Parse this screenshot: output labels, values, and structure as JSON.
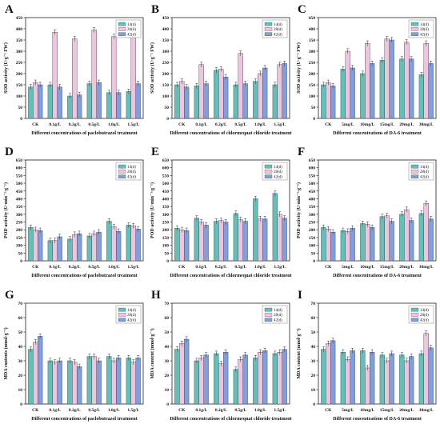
{
  "figure": {
    "colors": {
      "d14": "#5fc1b9",
      "d28": "#efc4de",
      "d42": "#7f9fe0",
      "edge": "#3a3a3a"
    }
  },
  "chart_data": [
    {
      "panel": "A",
      "type": "bar",
      "ylabel": "SOD activity (U·g⁻¹ FW)",
      "xlabel": "Different concentrations of paclobutrazol treatment",
      "categories": [
        "CK",
        "0.1g/L",
        "0.2g/L",
        "0.5g/L",
        "1.0g/L",
        "1.5g/L"
      ],
      "ylim": [
        0,
        450
      ],
      "yticks": [
        0,
        50,
        100,
        150,
        200,
        250,
        300,
        350,
        400,
        450
      ],
      "legend": [
        "14(d)",
        "28(d)",
        "42(d)"
      ],
      "legend_position": "top-right",
      "series": [
        {
          "name": "14(d)",
          "values": [
            140,
            150,
            100,
            155,
            115,
            120
          ]
        },
        {
          "name": "28(d)",
          "values": [
            160,
            385,
            355,
            395,
            365,
            385
          ]
        },
        {
          "name": "42(d)",
          "values": [
            150,
            140,
            105,
            160,
            115,
            155
          ]
        }
      ]
    },
    {
      "panel": "B",
      "type": "bar",
      "ylabel": "SOD activity (U·g⁻¹ FW)",
      "xlabel": "Different concentrations of chlormequat chloride treatment",
      "categories": [
        "CK",
        "0.1g/L",
        "0.2g/L",
        "0.5g/L",
        "1.0g/L",
        "1.5g/L"
      ],
      "ylim": [
        0,
        450
      ],
      "yticks": [
        0,
        50,
        100,
        150,
        200,
        250,
        300,
        350,
        400,
        450
      ],
      "legend": [
        "14(d)",
        "28(d)",
        "42(d)"
      ],
      "legend_position": "top-right",
      "series": [
        {
          "name": "14(d)",
          "values": [
            150,
            145,
            215,
            150,
            165,
            150
          ]
        },
        {
          "name": "28(d)",
          "values": [
            165,
            240,
            220,
            290,
            200,
            240
          ]
        },
        {
          "name": "42(d)",
          "values": [
            140,
            155,
            185,
            155,
            225,
            245
          ]
        }
      ]
    },
    {
      "panel": "C",
      "type": "bar",
      "ylabel": "SOD activity (U·g⁻¹ FW)",
      "xlabel": "Different concentrations of DA-6 treatment",
      "categories": [
        "CK",
        "5mg/L",
        "10mg/L",
        "15mg/L",
        "20mg/L",
        "30mg/L"
      ],
      "ylim": [
        0,
        450
      ],
      "yticks": [
        0,
        50,
        100,
        150,
        200,
        250,
        300,
        350,
        400,
        450
      ],
      "legend": [
        "14(d)",
        "28(d)",
        "42(d)"
      ],
      "legend_position": "top-right",
      "series": [
        {
          "name": "14(d)",
          "values": [
            150,
            220,
            200,
            260,
            265,
            195
          ]
        },
        {
          "name": "28(d)",
          "values": [
            160,
            300,
            335,
            355,
            340,
            335
          ]
        },
        {
          "name": "42(d)",
          "values": [
            145,
            225,
            245,
            350,
            265,
            245
          ]
        }
      ]
    },
    {
      "panel": "D",
      "type": "bar",
      "ylabel": "POD activity (U·min⁻¹·g⁻¹)",
      "xlabel": "Different concentrations of paclobutrazol treatment",
      "categories": [
        "CK",
        "0.1g/L",
        "0.2g/L",
        "0.5g/L",
        "1.0g/L",
        "1.5g/L"
      ],
      "ylim": [
        0,
        650
      ],
      "yticks": [
        0,
        50,
        100,
        150,
        200,
        250,
        300,
        350,
        400,
        450,
        500,
        550,
        600,
        650
      ],
      "legend": [
        "14(d)",
        "28(d)",
        "42(d)"
      ],
      "legend_position": "top-right",
      "series": [
        {
          "name": "14(d)",
          "values": [
            215,
            130,
            140,
            160,
            255,
            230
          ]
        },
        {
          "name": "28(d)",
          "values": [
            200,
            130,
            170,
            175,
            220,
            225
          ]
        },
        {
          "name": "42(d)",
          "values": [
            195,
            155,
            175,
            185,
            190,
            205
          ]
        }
      ]
    },
    {
      "panel": "E",
      "type": "bar",
      "ylabel": "POD activity (U·min⁻¹·g⁻¹)",
      "xlabel": "Different concentrations of chlormequat chloride treatment",
      "categories": [
        "CK",
        "0.1g/L",
        "0.2g/L",
        "0.5g/L",
        "1.0g/L",
        "1.5g/L"
      ],
      "ylim": [
        0,
        650
      ],
      "yticks": [
        0,
        50,
        100,
        150,
        200,
        250,
        300,
        350,
        400,
        450,
        500,
        550,
        600,
        650
      ],
      "legend": [
        "14(d)",
        "28(d)",
        "42(d)"
      ],
      "legend_position": "top-right",
      "series": [
        {
          "name": "14(d)",
          "values": [
            210,
            275,
            255,
            305,
            400,
            435
          ]
        },
        {
          "name": "28(d)",
          "values": [
            200,
            250,
            260,
            265,
            270,
            300
          ]
        },
        {
          "name": "42(d)",
          "values": [
            195,
            230,
            250,
            255,
            270,
            275
          ]
        }
      ]
    },
    {
      "panel": "F",
      "type": "bar",
      "ylabel": "POD activity (U·min⁻¹·g⁻¹)",
      "xlabel": "Different concentrations of DA-6 treatment",
      "categories": [
        "CK",
        "5mg/L",
        "10mg/L",
        "15mg/L",
        "20mg/L",
        "30mg/L"
      ],
      "ylim": [
        0,
        650
      ],
      "yticks": [
        0,
        50,
        100,
        150,
        200,
        250,
        300,
        350,
        400,
        450,
        500,
        550,
        600,
        650
      ],
      "legend": [
        "14(d)",
        "28(d)",
        "42(d)"
      ],
      "legend_position": "top-right",
      "series": [
        {
          "name": "14(d)",
          "values": [
            215,
            195,
            240,
            285,
            300,
            305
          ]
        },
        {
          "name": "28(d)",
          "values": [
            205,
            190,
            235,
            290,
            330,
            370
          ]
        },
        {
          "name": "42(d)",
          "values": [
            185,
            210,
            215,
            255,
            260,
            270
          ]
        }
      ]
    },
    {
      "panel": "G",
      "type": "bar",
      "ylabel": "MDA contents (nmol·g⁻¹)",
      "xlabel": "Different concentrations of paclobutrazol treatment",
      "categories": [
        "CK",
        "0.1g/L",
        "0.2g/L",
        "0.5g/L",
        "1.0g/L",
        "1.5g/L"
      ],
      "ylim": [
        0,
        70
      ],
      "yticks": [
        0,
        10,
        20,
        30,
        40,
        50,
        60,
        70
      ],
      "legend": [
        "14(d)",
        "28(d)",
        "42(d)"
      ],
      "legend_position": "top-right",
      "series": [
        {
          "name": "14(d)",
          "values": [
            38,
            30,
            30,
            33,
            33,
            32
          ]
        },
        {
          "name": "28(d)",
          "values": [
            43,
            29,
            29,
            33,
            30,
            29
          ]
        },
        {
          "name": "42(d)",
          "values": [
            47,
            30,
            26,
            30,
            32,
            32
          ]
        }
      ]
    },
    {
      "panel": "H",
      "type": "bar",
      "ylabel": "MDA content (nmol·g⁻¹)",
      "xlabel": "Different concentrations of chlormequat chloride treatment",
      "categories": [
        "CK",
        "0.1g/L",
        "0.2g/L",
        "0.5g/L",
        "1.0g/L",
        "1.5g/L"
      ],
      "ylim": [
        0,
        70
      ],
      "yticks": [
        0,
        10,
        20,
        30,
        40,
        50,
        60,
        70
      ],
      "legend": [
        "14(d)",
        "28(d)",
        "42(d)"
      ],
      "legend_position": "top-right",
      "series": [
        {
          "name": "14(d)",
          "values": [
            38,
            30,
            35,
            24,
            32,
            35
          ]
        },
        {
          "name": "28(d)",
          "values": [
            42,
            32,
            28,
            31,
            36,
            36
          ]
        },
        {
          "name": "42(d)",
          "values": [
            45,
            34,
            36,
            34,
            37,
            38
          ]
        }
      ]
    },
    {
      "panel": "I",
      "type": "bar",
      "ylabel": "MDA content (nmol·g⁻¹)",
      "xlabel": "Different concentrations of DA-6 treatment",
      "categories": [
        "CK",
        "5mg/L",
        "10mg/L",
        "15mg/L",
        "20mg/L",
        "30mg/L"
      ],
      "ylim": [
        0,
        70
      ],
      "yticks": [
        0,
        10,
        20,
        30,
        40,
        50,
        60,
        70
      ],
      "legend": [
        "14(d)",
        "28(d)",
        "42(d)"
      ],
      "legend_position": "top-right",
      "series": [
        {
          "name": "14(d)",
          "values": [
            38,
            36,
            37,
            34,
            34,
            35
          ]
        },
        {
          "name": "28(d)",
          "values": [
            42,
            31,
            25,
            30,
            30,
            49
          ]
        },
        {
          "name": "42(d)",
          "values": [
            44,
            37,
            36,
            35,
            33,
            39
          ]
        }
      ]
    }
  ]
}
